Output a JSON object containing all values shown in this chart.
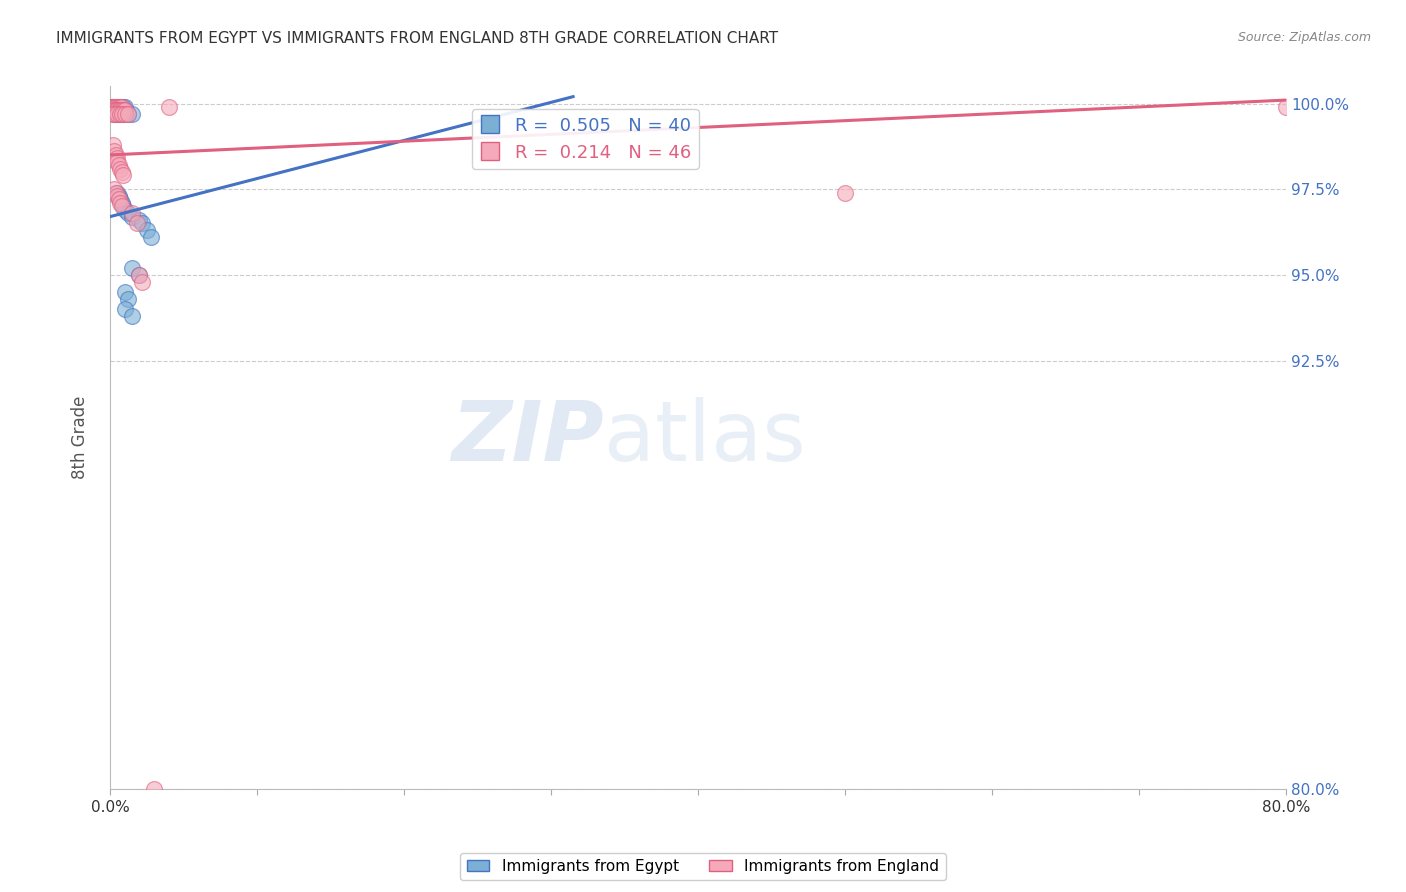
{
  "title": "IMMIGRANTS FROM EGYPT VS IMMIGRANTS FROM ENGLAND 8TH GRADE CORRELATION CHART",
  "source": "Source: ZipAtlas.com",
  "ylabel": "8th Grade",
  "legend_label_blue": "Immigrants from Egypt",
  "legend_label_pink": "Immigrants from England",
  "r_blue": 0.505,
  "n_blue": 40,
  "r_pink": 0.214,
  "n_pink": 46,
  "xlim": [
    0.0,
    0.8
  ],
  "ylim": [
    0.8,
    1.005
  ],
  "yticks": [
    0.8,
    0.925,
    0.95,
    0.975,
    1.0
  ],
  "yticklabels": [
    "80.0%",
    "92.5%",
    "95.0%",
    "97.5%",
    "100.0%"
  ],
  "blue_scatter": [
    [
      0.001,
      0.999
    ],
    [
      0.002,
      0.999
    ],
    [
      0.003,
      0.999
    ],
    [
      0.004,
      0.999
    ],
    [
      0.005,
      0.999
    ],
    [
      0.006,
      0.999
    ],
    [
      0.007,
      0.999
    ],
    [
      0.008,
      0.999
    ],
    [
      0.009,
      0.999
    ],
    [
      0.01,
      0.999
    ],
    [
      0.002,
      0.998
    ],
    [
      0.003,
      0.998
    ],
    [
      0.004,
      0.998
    ],
    [
      0.006,
      0.998
    ],
    [
      0.008,
      0.998
    ],
    [
      0.01,
      0.998
    ],
    [
      0.003,
      0.997
    ],
    [
      0.005,
      0.997
    ],
    [
      0.007,
      0.997
    ],
    [
      0.009,
      0.997
    ],
    [
      0.012,
      0.997
    ],
    [
      0.015,
      0.997
    ],
    [
      0.005,
      0.974
    ],
    [
      0.006,
      0.973
    ],
    [
      0.007,
      0.972
    ],
    [
      0.008,
      0.971
    ],
    [
      0.009,
      0.97
    ],
    [
      0.01,
      0.969
    ],
    [
      0.012,
      0.968
    ],
    [
      0.015,
      0.967
    ],
    [
      0.02,
      0.966
    ],
    [
      0.022,
      0.965
    ],
    [
      0.025,
      0.963
    ],
    [
      0.028,
      0.961
    ],
    [
      0.015,
      0.952
    ],
    [
      0.02,
      0.95
    ],
    [
      0.01,
      0.945
    ],
    [
      0.012,
      0.943
    ],
    [
      0.01,
      0.94
    ],
    [
      0.015,
      0.938
    ]
  ],
  "pink_scatter": [
    [
      0.001,
      0.999
    ],
    [
      0.002,
      0.999
    ],
    [
      0.003,
      0.999
    ],
    [
      0.004,
      0.999
    ],
    [
      0.005,
      0.999
    ],
    [
      0.006,
      0.999
    ],
    [
      0.007,
      0.999
    ],
    [
      0.008,
      0.999
    ],
    [
      0.003,
      0.998
    ],
    [
      0.004,
      0.998
    ],
    [
      0.005,
      0.998
    ],
    [
      0.006,
      0.998
    ],
    [
      0.007,
      0.998
    ],
    [
      0.008,
      0.998
    ],
    [
      0.009,
      0.998
    ],
    [
      0.01,
      0.998
    ],
    [
      0.002,
      0.997
    ],
    [
      0.003,
      0.997
    ],
    [
      0.005,
      0.997
    ],
    [
      0.007,
      0.997
    ],
    [
      0.008,
      0.997
    ],
    [
      0.01,
      0.997
    ],
    [
      0.012,
      0.997
    ],
    [
      0.002,
      0.988
    ],
    [
      0.003,
      0.986
    ],
    [
      0.004,
      0.985
    ],
    [
      0.005,
      0.984
    ],
    [
      0.005,
      0.983
    ],
    [
      0.006,
      0.982
    ],
    [
      0.007,
      0.981
    ],
    [
      0.008,
      0.98
    ],
    [
      0.009,
      0.979
    ],
    [
      0.003,
      0.975
    ],
    [
      0.004,
      0.974
    ],
    [
      0.005,
      0.973
    ],
    [
      0.006,
      0.972
    ],
    [
      0.007,
      0.971
    ],
    [
      0.008,
      0.97
    ],
    [
      0.015,
      0.968
    ],
    [
      0.018,
      0.965
    ],
    [
      0.02,
      0.95
    ],
    [
      0.022,
      0.948
    ],
    [
      0.04,
      0.999
    ],
    [
      0.5,
      0.974
    ],
    [
      0.8,
      0.999
    ],
    [
      0.03,
      0.8
    ]
  ],
  "blue_line_x": [
    0.0,
    0.315
  ],
  "blue_line_y": [
    0.967,
    1.002
  ],
  "pink_line_x": [
    0.0,
    0.8
  ],
  "pink_line_y": [
    0.985,
    1.001
  ],
  "blue_line_color": "#4472C4",
  "pink_line_color": "#E06080",
  "blue_scatter_color": "#7BAFD4",
  "pink_scatter_color": "#F4AABA",
  "watermark_zip": "ZIP",
  "watermark_atlas": "atlas",
  "grid_color": "#cccccc",
  "title_color": "#333333",
  "axis_label_color": "#555555",
  "right_axis_color": "#4472C4",
  "bottom_axis_color": "#333333"
}
